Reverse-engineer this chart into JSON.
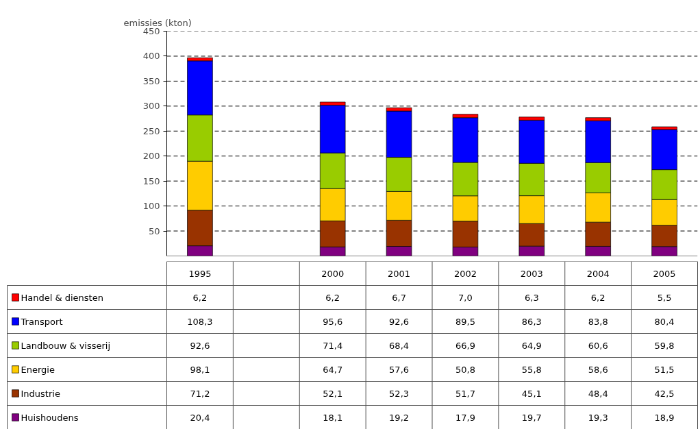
{
  "chart_data": {
    "type": "bar",
    "stacked": true,
    "ylabel": "emissies (kton)",
    "categories": [
      "1995",
      null,
      "2000",
      "2001",
      "2002",
      "2003",
      "2004",
      "2005"
    ],
    "ylim": [
      0,
      450
    ],
    "yticks": [
      50,
      100,
      150,
      200,
      250,
      300,
      350,
      400,
      450
    ],
    "grid": "y",
    "legend": "bottom",
    "series": [
      {
        "name": "Huishoudens",
        "color": "#800080",
        "values": [
          20.4,
          null,
          18.1,
          19.2,
          17.9,
          19.7,
          19.3,
          18.9
        ],
        "value_labels": [
          "20,4",
          null,
          "18,1",
          "19,2",
          "17,9",
          "19,7",
          "19,3",
          "18,9"
        ]
      },
      {
        "name": "Industrie",
        "color": "#993300",
        "values": [
          71.2,
          null,
          52.1,
          52.3,
          51.7,
          45.1,
          48.4,
          42.5
        ],
        "value_labels": [
          "71,2",
          null,
          "52,1",
          "52,3",
          "51,7",
          "45,1",
          "48,4",
          "42,5"
        ]
      },
      {
        "name": "Energie",
        "color": "#ffcc00",
        "values": [
          98.1,
          null,
          64.7,
          57.6,
          50.8,
          55.8,
          58.6,
          51.5
        ],
        "value_labels": [
          "98,1",
          null,
          "64,7",
          "57,6",
          "50,8",
          "55,8",
          "58,6",
          "51,5"
        ]
      },
      {
        "name": "Landbouw & visserij",
        "color": "#99cc00",
        "values": [
          92.6,
          null,
          71.4,
          68.4,
          66.9,
          64.9,
          60.6,
          59.8
        ],
        "value_labels": [
          "92,6",
          null,
          "71,4",
          "68,4",
          "66,9",
          "64,9",
          "60,6",
          "59,8"
        ]
      },
      {
        "name": "Transport",
        "color": "#0000ff",
        "values": [
          108.3,
          null,
          95.6,
          92.6,
          89.5,
          86.3,
          83.8,
          80.4
        ],
        "value_labels": [
          "108,3",
          null,
          "95,6",
          "92,6",
          "89,5",
          "86,3",
          "83,8",
          "80,4"
        ]
      },
      {
        "name": "Handel & diensten",
        "color": "#ff0000",
        "values": [
          6.2,
          null,
          6.2,
          6.7,
          7.0,
          6.3,
          6.2,
          5.5
        ],
        "value_labels": [
          "6,2",
          null,
          "6,2",
          "6,7",
          "7,0",
          "6,3",
          "6,2",
          "5,5"
        ]
      }
    ]
  }
}
